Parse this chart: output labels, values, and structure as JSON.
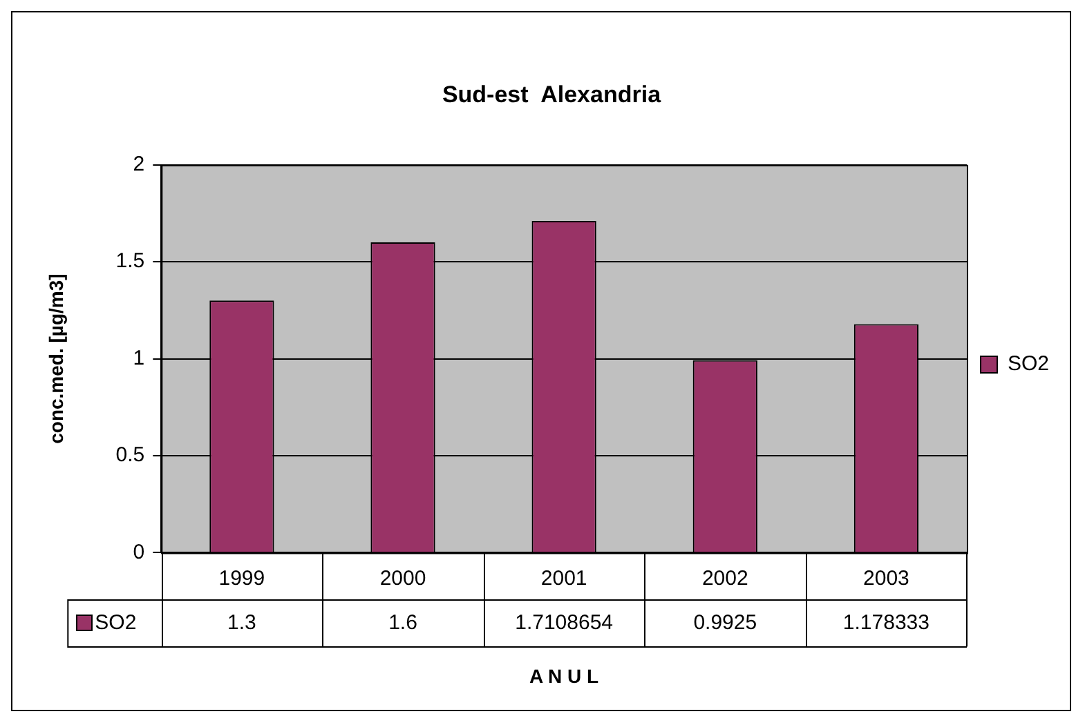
{
  "chart_data": {
    "type": "bar",
    "title": "Sud-est  Alexandria",
    "xlabel": "A N U L",
    "ylabel": "conc.med. [µg/m3]",
    "categories": [
      "1999",
      "2000",
      "2001",
      "2002",
      "2003"
    ],
    "series": [
      {
        "name": "SO2",
        "color": "#993366",
        "values": [
          1.3,
          1.6,
          1.7108654,
          0.9925,
          1.178333
        ]
      }
    ],
    "ylim": [
      0,
      2
    ],
    "yticks": [
      0,
      0.5,
      1,
      1.5,
      2
    ],
    "grid": "y",
    "legend": "right",
    "data_labels": true
  }
}
